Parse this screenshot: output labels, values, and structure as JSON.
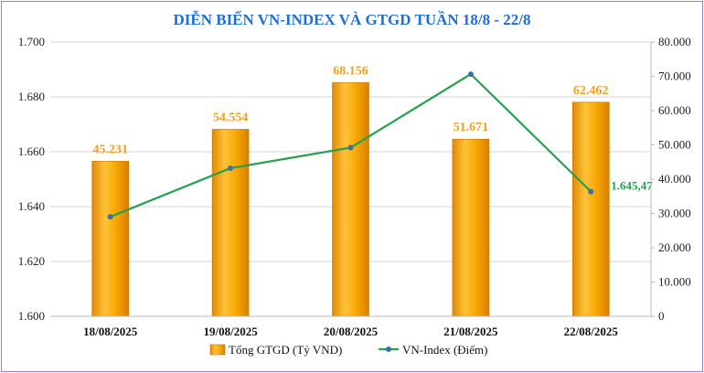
{
  "chart_data": {
    "type": "bar+line",
    "title": "DIỄN BIẾN VN-INDEX VÀ GTGD TUẦN 18/8 - 22/8",
    "categories": [
      "18/08/2025",
      "19/08/2025",
      "20/08/2025",
      "21/08/2025",
      "22/08/2025"
    ],
    "series": [
      {
        "name": "Tổng GTGD (Tỷ VND)",
        "type": "bar",
        "axis": "right",
        "values": [
          45231,
          54554,
          68156,
          51671,
          62462
        ],
        "labels": [
          "45.231",
          "54.554",
          "68.156",
          "51.671",
          "62.462"
        ],
        "color": "#f5a100"
      },
      {
        "name": "VN-Index (Điểm)",
        "type": "line",
        "axis": "left",
        "values": [
          1636.3,
          1654.0,
          1661.5,
          1688.3,
          1645.47
        ],
        "last_label": "1.645,47",
        "line_color": "#22a34a",
        "marker_color": "#3a6fb0"
      }
    ],
    "y_left": {
      "range": [
        1600,
        1700
      ],
      "ticks": [
        1700,
        1680,
        1660,
        1640,
        1620,
        1600
      ],
      "tick_labels": [
        "1.700",
        "1.680",
        "1.660",
        "1.640",
        "1.620",
        "1.600"
      ]
    },
    "y_right": {
      "range": [
        0,
        80000
      ],
      "ticks": [
        80000,
        70000,
        60000,
        50000,
        40000,
        30000,
        20000,
        10000,
        0
      ],
      "tick_labels": [
        "80.000",
        "70.000",
        "60.000",
        "50.000",
        "40.000",
        "30.000",
        "20.000",
        "10.000",
        "0"
      ]
    },
    "grid": true,
    "legend": "bottom-center"
  }
}
